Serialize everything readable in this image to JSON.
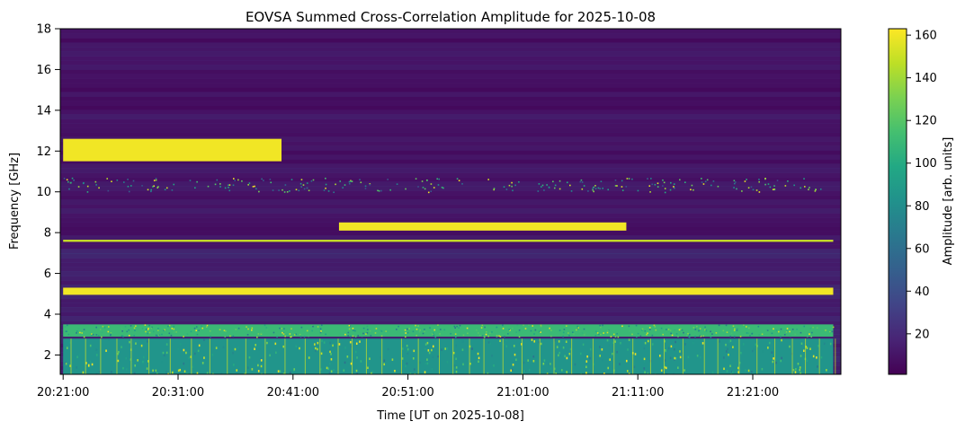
{
  "chart_data": {
    "type": "heatmap",
    "title": "EOVSA Summed Cross-Correlation Amplitude for 2025-10-08",
    "xlabel": "Time [UT on 2025-10-08]",
    "ylabel": "Frequency [GHz]",
    "x_tick_labels": [
      "20:21:00",
      "20:31:00",
      "20:41:00",
      "20:51:00",
      "21:01:00",
      "21:11:00",
      "21:21:00"
    ],
    "x_range": [
      "20:20:45",
      "21:28:40"
    ],
    "y_ticks": [
      2,
      4,
      6,
      8,
      10,
      12,
      14,
      16,
      18
    ],
    "ylim": [
      1.05,
      18
    ],
    "colorbar": {
      "label": "Amplitude [arb. units]",
      "ticks": [
        20,
        40,
        60,
        80,
        100,
        120,
        140,
        160
      ],
      "range": [
        1,
        163
      ],
      "colormap": "viridis"
    },
    "features": [
      {
        "desc": "intense band",
        "freq": [
          11.5,
          12.6
        ],
        "time": [
          "20:21:00",
          "20:40:00"
        ],
        "level": 160
      },
      {
        "desc": "speckled band",
        "freq": [
          10.0,
          10.7
        ],
        "time": [
          "20:21:00",
          "21:27:00"
        ],
        "level": 70
      },
      {
        "desc": "intense band",
        "freq": [
          8.1,
          8.5
        ],
        "time": [
          "20:45:00",
          "21:10:00"
        ],
        "level": 160
      },
      {
        "desc": "thin line",
        "freq": [
          7.55,
          7.65
        ],
        "time": [
          "20:21:00",
          "21:28:00"
        ],
        "level": 150
      },
      {
        "desc": "intense band",
        "freq": [
          4.95,
          5.3
        ],
        "time": [
          "20:21:00",
          "21:28:00"
        ],
        "level": 160
      },
      {
        "desc": "noisy band",
        "freq": [
          2.9,
          3.5
        ],
        "time": [
          "20:21:00",
          "21:28:00"
        ],
        "level": 110
      },
      {
        "desc": "teal base",
        "freq": [
          1.05,
          2.8
        ],
        "time": [
          "20:21:00",
          "21:28:00"
        ],
        "level": 85
      }
    ]
  }
}
